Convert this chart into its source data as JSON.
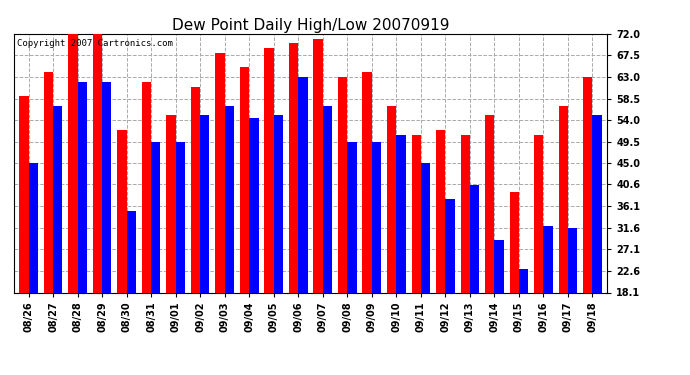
{
  "title": "Dew Point Daily High/Low 20070919",
  "copyright": "Copyright 2007 Cartronics.com",
  "dates": [
    "08/26",
    "08/27",
    "08/28",
    "08/29",
    "08/30",
    "08/31",
    "09/01",
    "09/02",
    "09/03",
    "09/04",
    "09/05",
    "09/06",
    "09/07",
    "09/08",
    "09/09",
    "09/10",
    "09/11",
    "09/12",
    "09/13",
    "09/14",
    "09/15",
    "09/16",
    "09/17",
    "09/18"
  ],
  "highs": [
    59.0,
    64.0,
    73.0,
    73.0,
    52.0,
    62.0,
    55.0,
    61.0,
    68.0,
    65.0,
    69.0,
    70.0,
    71.0,
    63.0,
    64.0,
    57.0,
    51.0,
    52.0,
    51.0,
    55.0,
    39.0,
    51.0,
    57.0,
    63.0
  ],
  "lows": [
    45.0,
    57.0,
    62.0,
    62.0,
    35.0,
    49.5,
    49.5,
    55.0,
    57.0,
    54.5,
    55.0,
    63.0,
    57.0,
    49.5,
    49.5,
    51.0,
    45.0,
    37.5,
    40.5,
    29.0,
    23.0,
    32.0,
    31.5,
    55.0
  ],
  "high_color": "#ff0000",
  "low_color": "#0000ff",
  "bg_color": "#ffffff",
  "grid_color": "#aaaaaa",
  "yticks": [
    18.1,
    22.6,
    27.1,
    31.6,
    36.1,
    40.6,
    45.0,
    49.5,
    54.0,
    58.5,
    63.0,
    67.5,
    72.0
  ],
  "ymin": 18.1,
  "ymax": 72.0,
  "title_fontsize": 11,
  "copyright_fontsize": 6.5,
  "tick_fontsize": 7
}
